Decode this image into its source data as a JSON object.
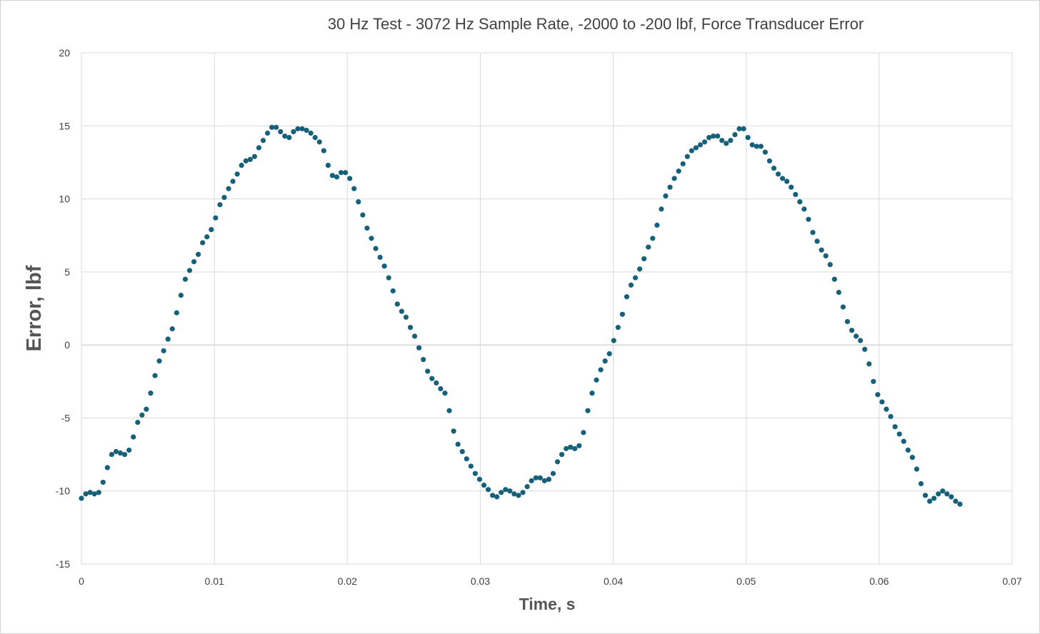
{
  "chart_data": {
    "type": "scatter",
    "title": "30 Hz Test - 3072 Hz Sample Rate, -2000 to -200 lbf, Force Transducer Error",
    "xlabel": "Time, s",
    "ylabel": "Error, lbf",
    "xlim": [
      0,
      0.07
    ],
    "ylim": [
      -15,
      20
    ],
    "xticks": [
      "0",
      "0.01",
      "0.02",
      "0.03",
      "0.04",
      "0.05",
      "0.06",
      "0.07"
    ],
    "yticks": [
      "20",
      "15",
      "10",
      "5",
      "0",
      "-5",
      "-10",
      "-15"
    ],
    "grid": true,
    "legend": "none",
    "marker_color": "#16607a",
    "sample_interval": 0.0003255,
    "series": [
      {
        "values": [
          -10.5,
          -10.2,
          -10.1,
          -10.2,
          -10.1,
          -9.4,
          -8.4,
          -7.5,
          -7.3,
          -7.4,
          -7.5,
          -7.2,
          -6.3,
          -5.3,
          -4.8,
          -4.4,
          -3.3,
          -2.1,
          -1.1,
          -0.4,
          0.4,
          1.1,
          2.2,
          3.4,
          4.5,
          5.1,
          5.7,
          6.2,
          7.0,
          7.4,
          7.9,
          8.7,
          9.6,
          10.1,
          10.7,
          11.2,
          11.7,
          12.3,
          12.6,
          12.7,
          12.9,
          13.5,
          14.0,
          14.5,
          14.9,
          14.9,
          14.6,
          14.3,
          14.2,
          14.6,
          14.8,
          14.8,
          14.7,
          14.5,
          14.2,
          13.9,
          13.3,
          12.3,
          11.6,
          11.5,
          11.8,
          11.8,
          11.4,
          10.7,
          9.8,
          8.9,
          8.0,
          7.3,
          6.6,
          6.0,
          5.4,
          4.6,
          3.7,
          2.8,
          2.3,
          1.9,
          1.2,
          0.6,
          -0.2,
          -1.0,
          -1.8,
          -2.3,
          -2.6,
          -3.0,
          -3.3,
          -4.5,
          -5.9,
          -6.8,
          -7.3,
          -7.8,
          -8.3,
          -8.8,
          -9.2,
          -9.6,
          -9.9,
          -10.3,
          -10.4,
          -10.1,
          -9.9,
          -10.0,
          -10.2,
          -10.3,
          -10.1,
          -9.7,
          -9.3,
          -9.1,
          -9.1,
          -9.3,
          -9.2,
          -8.8,
          -8.0,
          -7.5,
          -7.1,
          -7.0,
          -7.1,
          -6.9,
          -6.0,
          -4.5,
          -3.3,
          -2.4,
          -1.7,
          -1.1,
          -0.6,
          0.3,
          1.2,
          2.1,
          3.3,
          4.1,
          4.6,
          5.2,
          5.9,
          6.7,
          7.3,
          8.2,
          9.3,
          10.2,
          10.8,
          11.4,
          11.9,
          12.4,
          12.9,
          13.3,
          13.5,
          13.7,
          13.9,
          14.2,
          14.3,
          14.3,
          14.0,
          13.8,
          14.0,
          14.4,
          14.8,
          14.8,
          14.2,
          13.7,
          13.6,
          13.6,
          13.2,
          12.6,
          12.1,
          11.7,
          11.4,
          11.2,
          10.8,
          10.3,
          9.8,
          9.3,
          8.6,
          7.7,
          7.1,
          6.5,
          6.1,
          5.5,
          4.5,
          3.6,
          2.6,
          1.6,
          1.0,
          0.6,
          0.3,
          -0.3,
          -1.3,
          -2.5,
          -3.4,
          -3.9,
          -4.4,
          -4.9,
          -5.6,
          -6.1,
          -6.6,
          -7.2,
          -7.7,
          -8.5,
          -9.5,
          -10.3,
          -10.7,
          -10.5,
          -10.2,
          -10.0,
          -10.2,
          -10.4,
          -10.7,
          -10.9
        ]
      }
    ]
  }
}
